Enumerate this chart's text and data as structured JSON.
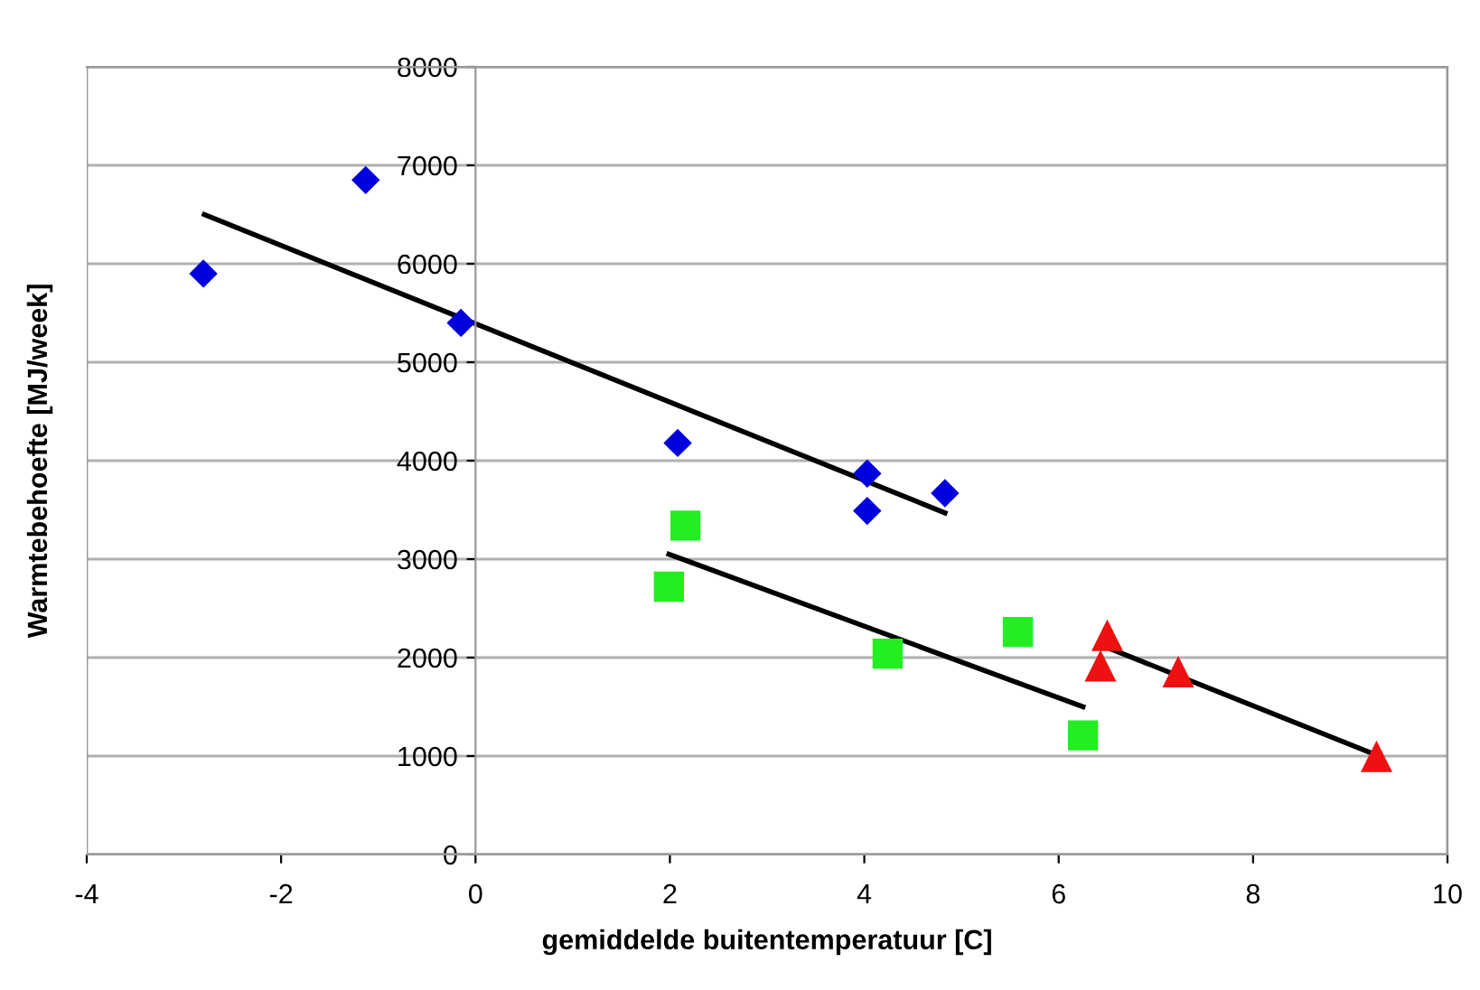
{
  "chart_data": {
    "type": "scatter",
    "xlabel": "gemiddelde buitentemperatuur [C]",
    "ylabel": "Warmtebehoefte [MJ/week]",
    "xlim": [
      -4,
      10
    ],
    "xticks": [
      -4,
      -2,
      0,
      2,
      4,
      6,
      8,
      10
    ],
    "ylim": [
      0,
      8000
    ],
    "yticks": [
      0,
      1000,
      2000,
      3000,
      4000,
      5000,
      6000,
      7000,
      8000
    ],
    "grid": "y",
    "series": [
      {
        "color": "#0000dd",
        "marker": "diamond",
        "x": [
          -2.8,
          -1.13,
          -0.15,
          2.08,
          4.03,
          4.03,
          4.83
        ],
        "values": [
          5900,
          6850,
          5400,
          4180,
          3870,
          3490,
          3670
        ]
      },
      {
        "color": "#22ee22",
        "marker": "square",
        "x": [
          2.16,
          1.99,
          4.24,
          5.58,
          6.25
        ],
        "values": [
          3340,
          2720,
          2040,
          2260,
          1210
        ]
      },
      {
        "color": "#ee1111",
        "marker": "triangle",
        "x": [
          6.5,
          6.43,
          7.23,
          9.27
        ],
        "values": [
          2220,
          1910,
          1850,
          990
        ]
      },
      {
        "type": "line",
        "color": "#000000",
        "marker": "none",
        "x": [
          -2.79,
          4.83
        ],
        "values": [
          6500,
          3470
        ]
      },
      {
        "type": "line",
        "color": "#000000",
        "marker": "none",
        "x": [
          1.99,
          6.25
        ],
        "values": [
          3050,
          1500
        ]
      },
      {
        "type": "line",
        "color": "#000000",
        "marker": "none",
        "x": [
          6.43,
          9.27
        ],
        "values": [
          2130,
          1010
        ]
      }
    ]
  }
}
